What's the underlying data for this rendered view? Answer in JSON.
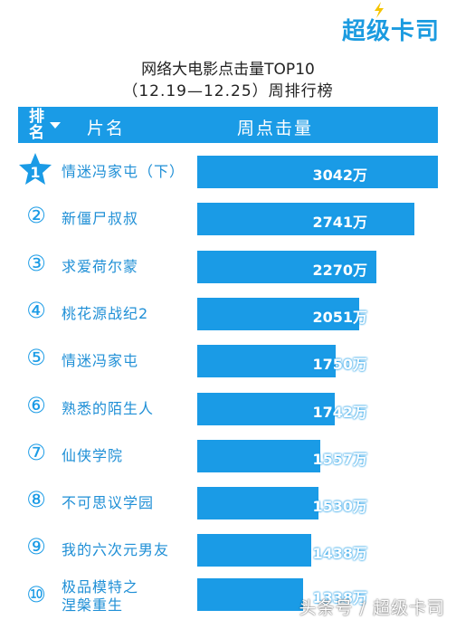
{
  "logo": {
    "text": "超级卡司"
  },
  "title": {
    "line1": "网络大电影点击量TOP10",
    "line2": "（12.19—12.25）周排行榜"
  },
  "header": {
    "rank_label": "排名",
    "name_label": "片名",
    "clicks_label": "周点击量"
  },
  "watermark": "头条号 / 超级卡司",
  "colors": {
    "accent": "#1a9be6",
    "header_bg": "#1a9be6",
    "bar": "#1a9be6"
  },
  "chart_data": {
    "type": "bar",
    "orientation": "horizontal",
    "title": "网络大电影点击量TOP10",
    "subtitle": "（12.19—12.25）周排行榜",
    "unit": "万",
    "categories": [
      "情迷冯家屯（下）",
      "新僵尸叔叔",
      "求爱荷尔蒙",
      "桃花源战纪2",
      "情迷冯家屯",
      "熟悉的陌生人",
      "仙侠学院",
      "不可思议学园",
      "我的六次元男友",
      "极品模特之涅槃重生"
    ],
    "ranks": [
      "1",
      "②",
      "③",
      "④",
      "⑤",
      "⑥",
      "⑦",
      "⑧",
      "⑨",
      "⑩"
    ],
    "values": [
      3042,
      2741,
      2270,
      2051,
      1750,
      1742,
      1557,
      1530,
      1438,
      1338
    ],
    "value_labels": [
      "3042万",
      "2741万",
      "2270万",
      "2051万",
      "1750万",
      "1742万",
      "1557万",
      "1530万",
      "1438万",
      "1338万"
    ],
    "xlim": [
      0,
      3042
    ]
  }
}
